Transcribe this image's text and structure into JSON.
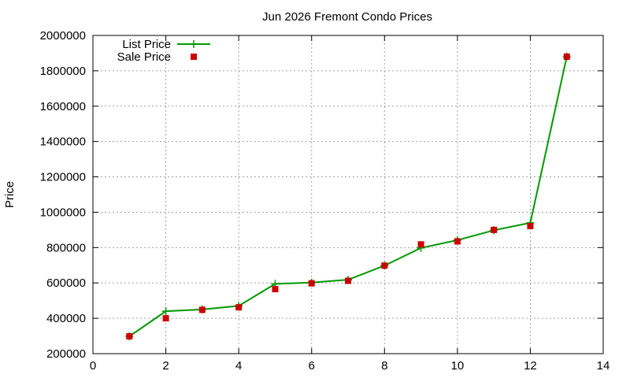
{
  "chart_data": {
    "type": "line",
    "title": "Jun 2026 Fremont Condo Prices",
    "xlabel": "",
    "ylabel": "Price",
    "xlim": [
      0,
      14
    ],
    "ylim": [
      200000,
      2000000
    ],
    "xticks": [
      0,
      2,
      4,
      6,
      8,
      10,
      12,
      14
    ],
    "yticks": [
      200000,
      400000,
      600000,
      800000,
      1000000,
      1200000,
      1400000,
      1600000,
      1800000,
      2000000
    ],
    "grid": true,
    "legend_position": "top-left",
    "series": [
      {
        "name": "List Price",
        "style": "line-with-plus-markers",
        "color": "#009900",
        "x": [
          1,
          2,
          3,
          4,
          5,
          6,
          7,
          8,
          9,
          10,
          11,
          12,
          13
        ],
        "y": [
          298000,
          440000,
          450000,
          470000,
          595000,
          602000,
          618000,
          698000,
          798000,
          842000,
          898000,
          940000,
          1880000
        ]
      },
      {
        "name": "Sale Price",
        "style": "square-markers",
        "color": "#cc0000",
        "x": [
          1,
          2,
          3,
          4,
          5,
          6,
          7,
          8,
          9,
          10,
          11,
          12,
          13
        ],
        "y": [
          298000,
          400000,
          448000,
          462000,
          565000,
          598000,
          612000,
          698000,
          818000,
          835000,
          900000,
          922000,
          1880000
        ]
      }
    ]
  }
}
